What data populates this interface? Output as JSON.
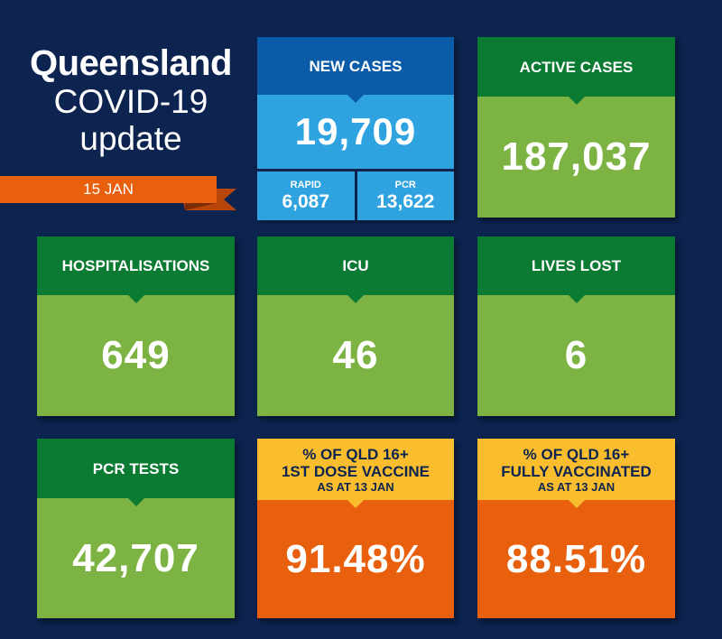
{
  "header": {
    "title_line1": "Queensland",
    "title_line2": "COVID-19",
    "title_line3": "update",
    "date": "15 JAN"
  },
  "colors": {
    "background": "#0d2450",
    "green_header": "#0b7a33",
    "green_body": "#7cb342",
    "blue_header": "#0a5ca8",
    "blue_body": "#2ea3e0",
    "orange_header": "#f9bd2d",
    "orange_body": "#e8600d",
    "ribbon": "#e8600d"
  },
  "new_cases": {
    "label": "NEW CASES",
    "value": "19,709",
    "rapid_label": "RAPID",
    "rapid_value": "6,087",
    "pcr_label": "PCR",
    "pcr_value": "13,622"
  },
  "active_cases": {
    "label": "ACTIVE CASES",
    "value": "187,037"
  },
  "hospitalisations": {
    "label": "HOSPITALISATIONS",
    "value": "649"
  },
  "icu": {
    "label": "ICU",
    "value": "46"
  },
  "lives_lost": {
    "label": "LIVES LOST",
    "value": "6"
  },
  "pcr_tests": {
    "label": "PCR TESTS",
    "value": "42,707"
  },
  "first_dose": {
    "label_line1": "% OF QLD 16+",
    "label_line2": "1ST DOSE VACCINE",
    "label_line3": "AS AT 13 JAN",
    "value": "91.48%"
  },
  "fully_vaccinated": {
    "label_line1": "% OF QLD 16+",
    "label_line2": "FULLY VACCINATED",
    "label_line3": "AS AT 13 JAN",
    "value": "88.51%"
  }
}
